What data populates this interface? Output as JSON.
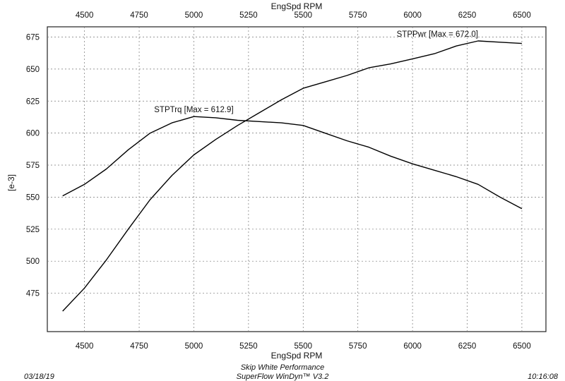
{
  "chart_data": {
    "type": "line",
    "x_axis_label_top": "EngSpd RPM",
    "x_axis_label_bottom": "EngSpd RPM",
    "ylabel": "[e-3]",
    "xlim": [
      4330,
      6610
    ],
    "ylim": [
      445,
      683
    ],
    "x_ticks": [
      4500,
      4750,
      5000,
      5250,
      5500,
      5750,
      6000,
      6250,
      6500
    ],
    "y_ticks": [
      475,
      500,
      525,
      550,
      575,
      600,
      625,
      650,
      675
    ],
    "x_tick_labels": [
      "4500",
      "4750",
      "5000",
      "5250",
      "5500",
      "5750",
      "6000",
      "6250",
      "6500"
    ],
    "y_tick_labels": [
      "475",
      "500",
      "525",
      "550",
      "575",
      "600",
      "625",
      "650",
      "675"
    ],
    "grid": "dashed",
    "series": [
      {
        "name": "STPPwr [Max = 672.0]",
        "x": [
          4400,
          4500,
          4600,
          4700,
          4800,
          4900,
          5000,
          5100,
          5200,
          5300,
          5400,
          5500,
          5600,
          5700,
          5800,
          5900,
          6000,
          6100,
          6200,
          6300,
          6400,
          6500
        ],
        "values": [
          461,
          479,
          501,
          525,
          548,
          567,
          583,
          595,
          606,
          616,
          626,
          635,
          640,
          645,
          651,
          654,
          658,
          662,
          668,
          672,
          671,
          670
        ]
      },
      {
        "name": "STPTrq [Max = 612.9]",
        "x": [
          4400,
          4500,
          4600,
          4700,
          4800,
          4900,
          5000,
          5100,
          5200,
          5300,
          5400,
          5500,
          5600,
          5700,
          5800,
          5900,
          6000,
          6100,
          6200,
          6300,
          6400,
          6500
        ],
        "values": [
          551,
          560,
          572,
          587,
          600,
          608,
          612.9,
          612,
          610,
          609,
          608,
          606,
          600,
          594,
          589,
          582,
          576,
          571,
          566,
          560,
          550,
          541
        ]
      }
    ]
  },
  "footer": {
    "date": "03/18/19",
    "company": "Skip White Performance",
    "software": "SuperFlow WinDyn™ V3.2",
    "time": "10:16:08"
  }
}
